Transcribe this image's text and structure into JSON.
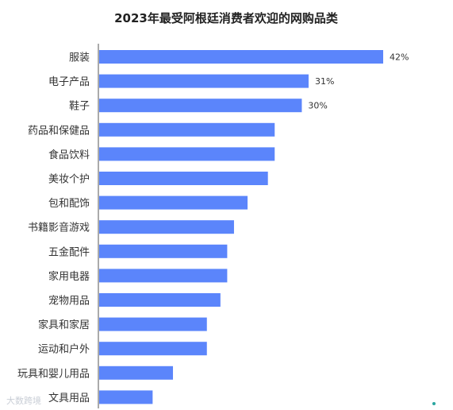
{
  "chart_data": {
    "type": "bar",
    "orientation": "horizontal",
    "title": "2023年最受阿根廷消费者欢迎的网购品类",
    "categories": [
      "服装",
      "电子产品",
      "鞋子",
      "药品和保健品",
      "食品饮料",
      "美妆个护",
      "包和配饰",
      "书籍影音游戏",
      "五金配件",
      "家用电器",
      "宠物用品",
      "家具和家居",
      "运动和户外",
      "玩具和婴儿用品",
      "文具用品"
    ],
    "values": [
      42,
      31,
      30,
      26,
      26,
      25,
      22,
      20,
      19,
      19,
      18,
      16,
      16,
      11,
      8
    ],
    "value_labels": [
      "42%",
      "31%",
      "30%",
      "",
      "",
      "",
      "",
      "",
      "",
      "",
      "",
      "",
      "",
      "",
      ""
    ],
    "unit": "%",
    "xlim": [
      0,
      42
    ],
    "bar_color": "#5b85fb",
    "axis_color": "#555555",
    "grid": false
  },
  "watermark": "大数跨境"
}
